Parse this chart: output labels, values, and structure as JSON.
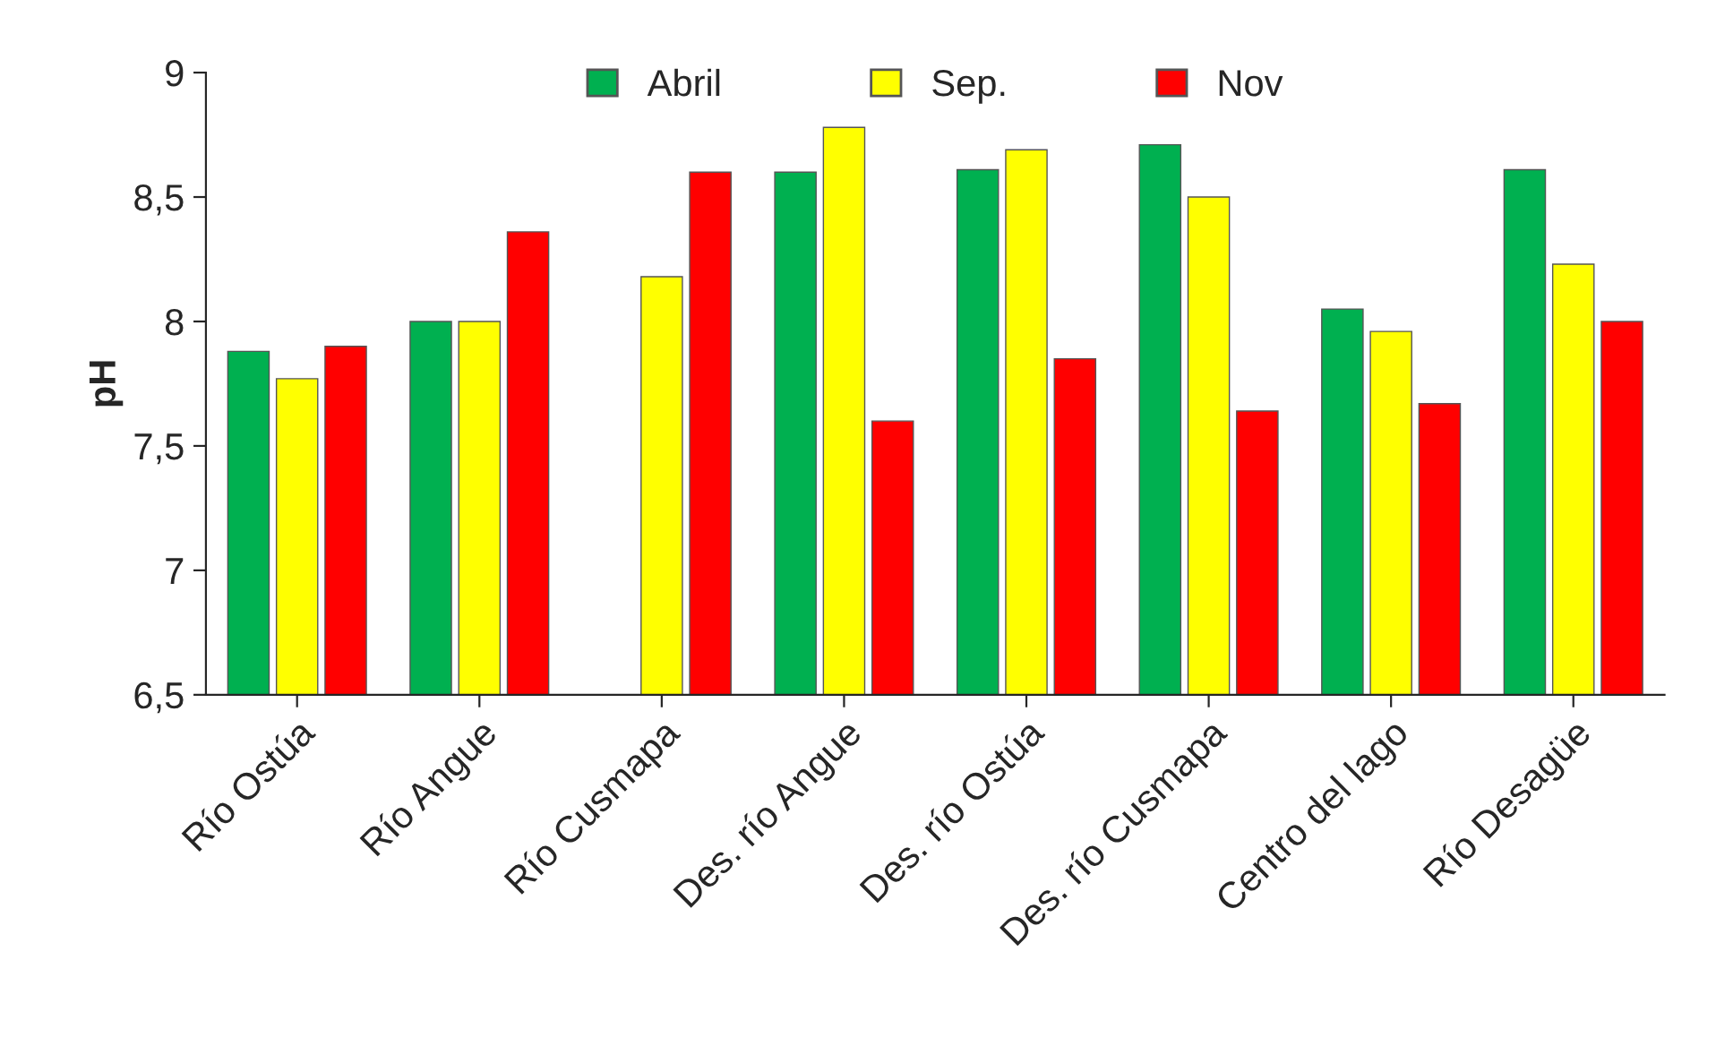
{
  "chart_data": {
    "type": "bar",
    "ylabel": "pH",
    "categories": [
      "Río Ostúa",
      "Río Angue",
      "Río Cusmapa",
      "Des. río Angue",
      "Des. río Ostúa",
      "Des. río Cusmapa",
      "Centro del lago",
      "Río Desagüe"
    ],
    "series": [
      {
        "name": "Abril",
        "color": "#00b050",
        "values": [
          7.88,
          8.0,
          null,
          8.6,
          8.61,
          8.71,
          8.05,
          8.61
        ]
      },
      {
        "name": "Sep.",
        "color": "#ffff00",
        "values": [
          7.77,
          8.0,
          8.18,
          8.78,
          8.69,
          8.5,
          7.96,
          8.23
        ]
      },
      {
        "name": "Nov",
        "color": "#ff0000",
        "values": [
          7.9,
          8.36,
          8.6,
          7.6,
          7.85,
          7.64,
          7.67,
          8.0
        ]
      }
    ],
    "ylim": [
      6.5,
      9
    ],
    "yticks": [
      {
        "value": 6.5,
        "label": "6,5"
      },
      7,
      {
        "value": 7.5,
        "label": "7,5"
      },
      8,
      {
        "value": 8.5,
        "label": "8,5"
      },
      9
    ],
    "grid": false,
    "legend": "top"
  }
}
